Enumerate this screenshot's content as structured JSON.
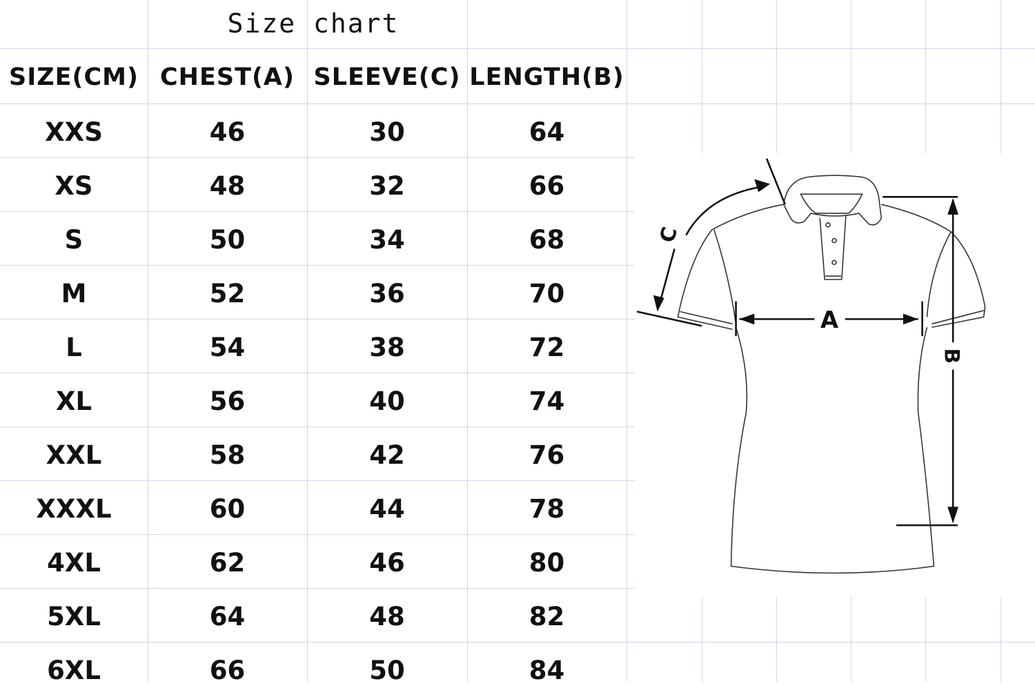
{
  "title": "Size chart",
  "headers": [
    "SIZE(CM)",
    "CHEST(A)",
    "SLEEVE(C)",
    "LENGTH(B)"
  ],
  "rows": [
    [
      "XXS",
      "46",
      "30",
      "64"
    ],
    [
      "XS",
      "48",
      "32",
      "66"
    ],
    [
      "S",
      "50",
      "34",
      "68"
    ],
    [
      "M",
      "52",
      "36",
      "70"
    ],
    [
      "L",
      "54",
      "38",
      "72"
    ],
    [
      "XL",
      "56",
      "40",
      "74"
    ],
    [
      "XXL",
      "58",
      "42",
      "76"
    ],
    [
      "XXXL",
      "60",
      "44",
      "78"
    ],
    [
      "4XL",
      "62",
      "46",
      "80"
    ],
    [
      "5XL",
      "64",
      "48",
      "82"
    ],
    [
      "6XL",
      "66",
      "50",
      "84"
    ]
  ],
  "diagram": {
    "label_a": "A",
    "label_b": "B",
    "label_c": "C"
  },
  "colors": {
    "grid": "#cfd6e6",
    "text": "#111111"
  }
}
